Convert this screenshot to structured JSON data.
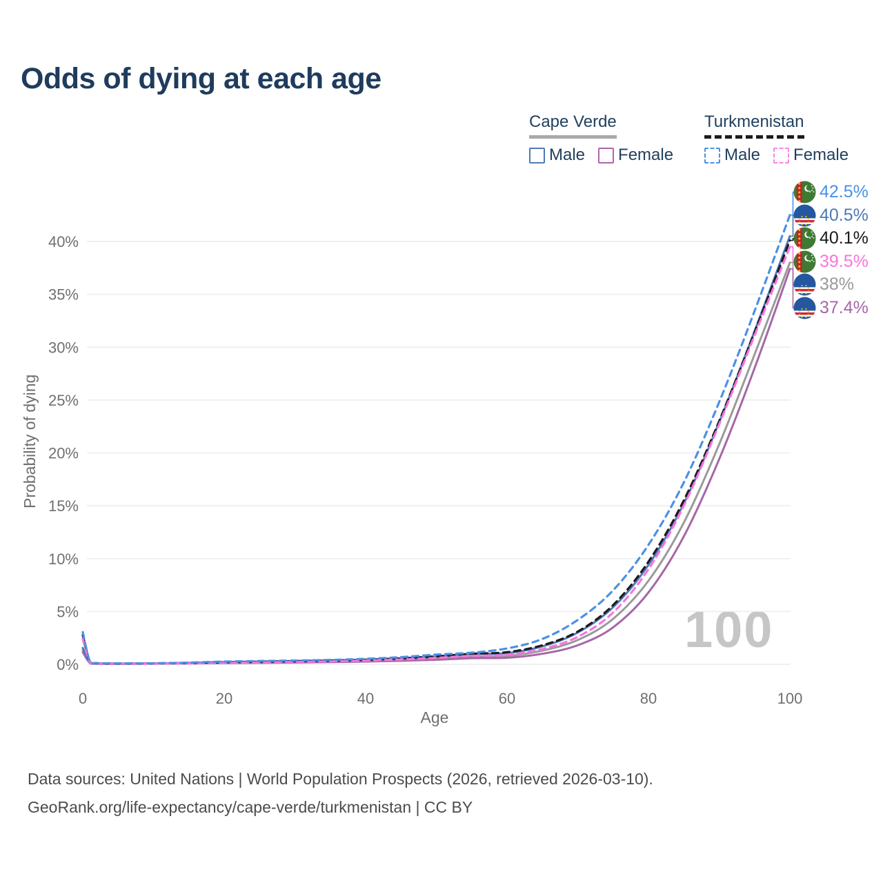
{
  "title": "Odds of dying at each age",
  "legend": {
    "groups": [
      {
        "name": "Cape Verde",
        "line_style": "solid",
        "underline_color": "#a9a9a9",
        "items": [
          {
            "label": "Male",
            "color": "#4e79b7",
            "dashed": false
          },
          {
            "label": "Female",
            "color": "#b263ae",
            "dashed": false
          }
        ]
      },
      {
        "name": "Turkmenistan",
        "line_style": "dashed",
        "underline_color": "#1d1d1d",
        "items": [
          {
            "label": "Male",
            "color": "#4a90e8",
            "dashed": true
          },
          {
            "label": "Female",
            "color": "#fb84e1",
            "dashed": true
          }
        ]
      }
    ]
  },
  "watermark": "100",
  "footer": {
    "line1": "Data sources: United Nations | World Population Prospects (2026, retrieved 2026-03-10).",
    "line2": "GeoRank.org/life-expectancy/cape-verde/turkmenistan | CC BY"
  },
  "end_labels": [
    {
      "value": "42.5%",
      "color": "#4a90e8",
      "flag": "turkmenistan",
      "series": "tm_male"
    },
    {
      "value": "40.5%",
      "color": "#4e79b7",
      "flag": "cape-verde",
      "series": "cv_male"
    },
    {
      "value": "40.1%",
      "color": "#1a1a1a",
      "flag": "turkmenistan",
      "series": "tm_all"
    },
    {
      "value": "39.5%",
      "color": "#f973df",
      "flag": "turkmenistan",
      "series": "tm_female"
    },
    {
      "value": "38%",
      "color": "#9a9a9a",
      "flag": "cape-verde",
      "series": "cv_all"
    },
    {
      "value": "37.4%",
      "color": "#a666a8",
      "flag": "cape-verde",
      "series": "cv_female"
    }
  ],
  "chart_data": {
    "type": "line",
    "title": "Odds of dying at each age",
    "xlabel": "Age",
    "ylabel": "Probability of dying",
    "xlim": [
      0,
      100
    ],
    "ylim": [
      0,
      43
    ],
    "grid": true,
    "legend_position": "top-right",
    "xticks": [
      0,
      20,
      40,
      60,
      80,
      100
    ],
    "yticks": [
      {
        "value": 0,
        "label": "0%"
      },
      {
        "value": 5,
        "label": "5%"
      },
      {
        "value": 10,
        "label": "10%"
      },
      {
        "value": 15,
        "label": "15%"
      },
      {
        "value": 20,
        "label": "20%"
      },
      {
        "value": 25,
        "label": "25%"
      },
      {
        "value": 30,
        "label": "30%"
      },
      {
        "value": 35,
        "label": "35%"
      },
      {
        "value": 40,
        "label": "40%"
      }
    ],
    "series": [
      {
        "id": "cv_all",
        "name": "Cape Verde Both sexes",
        "color": "#9a9a9a",
        "dashed": false,
        "end_value": 38.0,
        "points": [
          [
            0,
            1.35
          ],
          [
            1,
            0.15
          ],
          [
            2,
            0.07
          ],
          [
            5,
            0.05
          ],
          [
            10,
            0.07
          ],
          [
            15,
            0.1
          ],
          [
            20,
            0.15
          ],
          [
            25,
            0.18
          ],
          [
            30,
            0.22
          ],
          [
            35,
            0.26
          ],
          [
            40,
            0.32
          ],
          [
            45,
            0.42
          ],
          [
            50,
            0.55
          ],
          [
            55,
            0.76
          ],
          [
            60,
            0.8
          ],
          [
            65,
            1.3
          ],
          [
            70,
            2.3
          ],
          [
            75,
            4.3
          ],
          [
            80,
            7.9
          ],
          [
            85,
            13.4
          ],
          [
            90,
            20.8
          ],
          [
            95,
            29.3
          ],
          [
            100,
            38.0
          ]
        ]
      },
      {
        "id": "cv_female",
        "name": "Cape Verde Female",
        "color": "#a666a8",
        "dashed": false,
        "end_value": 37.4,
        "points": [
          [
            0,
            1.15
          ],
          [
            1,
            0.13
          ],
          [
            2,
            0.06
          ],
          [
            5,
            0.04
          ],
          [
            10,
            0.06
          ],
          [
            15,
            0.08
          ],
          [
            20,
            0.11
          ],
          [
            25,
            0.14
          ],
          [
            30,
            0.17
          ],
          [
            35,
            0.21
          ],
          [
            40,
            0.26
          ],
          [
            45,
            0.33
          ],
          [
            50,
            0.43
          ],
          [
            55,
            0.58
          ],
          [
            60,
            0.62
          ],
          [
            65,
            1.0
          ],
          [
            70,
            1.8
          ],
          [
            75,
            3.5
          ],
          [
            80,
            6.8
          ],
          [
            85,
            12.1
          ],
          [
            90,
            19.4
          ],
          [
            95,
            28.0
          ],
          [
            100,
            37.4
          ]
        ]
      },
      {
        "id": "cv_male",
        "name": "Cape Verde Male",
        "color": "#4e79b7",
        "dashed": false,
        "end_value": 40.5,
        "points": [
          [
            0,
            1.55
          ],
          [
            1,
            0.18
          ],
          [
            2,
            0.08
          ],
          [
            5,
            0.06
          ],
          [
            10,
            0.08
          ],
          [
            15,
            0.12
          ],
          [
            20,
            0.19
          ],
          [
            25,
            0.23
          ],
          [
            30,
            0.27
          ],
          [
            35,
            0.32
          ],
          [
            40,
            0.4
          ],
          [
            45,
            0.53
          ],
          [
            50,
            0.71
          ],
          [
            55,
            0.99
          ],
          [
            60,
            1.05
          ],
          [
            65,
            1.7
          ],
          [
            70,
            3.0
          ],
          [
            75,
            5.4
          ],
          [
            80,
            9.4
          ],
          [
            85,
            15.2
          ],
          [
            90,
            22.9
          ],
          [
            95,
            31.5
          ],
          [
            100,
            40.5
          ]
        ]
      },
      {
        "id": "tm_all",
        "name": "Turkmenistan Both sexes",
        "color": "#1c1c1c",
        "dashed": true,
        "end_value": 40.1,
        "points": [
          [
            0,
            2.75
          ],
          [
            1,
            0.26
          ],
          [
            2,
            0.1
          ],
          [
            5,
            0.08
          ],
          [
            10,
            0.09
          ],
          [
            15,
            0.13
          ],
          [
            20,
            0.2
          ],
          [
            25,
            0.25
          ],
          [
            30,
            0.3
          ],
          [
            35,
            0.36
          ],
          [
            40,
            0.44
          ],
          [
            45,
            0.57
          ],
          [
            50,
            0.76
          ],
          [
            55,
            1.0
          ],
          [
            60,
            1.15
          ],
          [
            65,
            1.8
          ],
          [
            70,
            3.1
          ],
          [
            75,
            5.6
          ],
          [
            80,
            9.7
          ],
          [
            85,
            15.5
          ],
          [
            90,
            23.0
          ],
          [
            95,
            31.4
          ],
          [
            100,
            40.1
          ]
        ]
      },
      {
        "id": "tm_female",
        "name": "Turkmenistan Female",
        "color": "#f973df",
        "dashed": true,
        "end_value": 39.5,
        "points": [
          [
            0,
            2.4
          ],
          [
            1,
            0.22
          ],
          [
            2,
            0.09
          ],
          [
            5,
            0.07
          ],
          [
            10,
            0.08
          ],
          [
            15,
            0.11
          ],
          [
            20,
            0.15
          ],
          [
            25,
            0.19
          ],
          [
            30,
            0.23
          ],
          [
            35,
            0.29
          ],
          [
            40,
            0.36
          ],
          [
            45,
            0.46
          ],
          [
            50,
            0.61
          ],
          [
            55,
            0.8
          ],
          [
            60,
            0.9
          ],
          [
            65,
            1.45
          ],
          [
            70,
            2.6
          ],
          [
            75,
            4.9
          ],
          [
            80,
            9.0
          ],
          [
            85,
            15.0
          ],
          [
            90,
            22.7
          ],
          [
            95,
            31.1
          ],
          [
            100,
            39.5
          ]
        ]
      },
      {
        "id": "tm_male",
        "name": "Turkmenistan Male",
        "color": "#4a90e8",
        "dashed": true,
        "end_value": 42.5,
        "points": [
          [
            0,
            3.05
          ],
          [
            1,
            0.3
          ],
          [
            2,
            0.12
          ],
          [
            5,
            0.09
          ],
          [
            10,
            0.1
          ],
          [
            15,
            0.16
          ],
          [
            20,
            0.26
          ],
          [
            25,
            0.31
          ],
          [
            30,
            0.36
          ],
          [
            35,
            0.42
          ],
          [
            40,
            0.52
          ],
          [
            45,
            0.68
          ],
          [
            50,
            0.92
          ],
          [
            55,
            1.1
          ],
          [
            60,
            1.5
          ],
          [
            65,
            2.4
          ],
          [
            70,
            4.2
          ],
          [
            75,
            7.0
          ],
          [
            80,
            11.3
          ],
          [
            85,
            17.2
          ],
          [
            90,
            24.8
          ],
          [
            95,
            33.4
          ],
          [
            100,
            42.5
          ]
        ]
      }
    ]
  }
}
